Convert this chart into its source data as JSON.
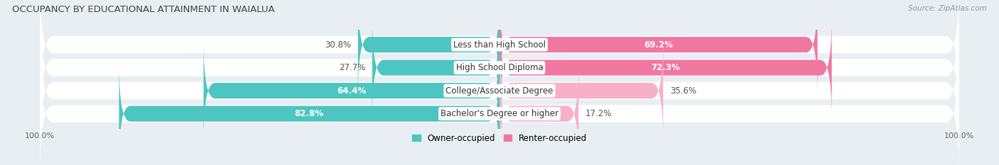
{
  "title": "OCCUPANCY BY EDUCATIONAL ATTAINMENT IN WAIALUA",
  "source": "Source: ZipAtlas.com",
  "categories": [
    "Less than High School",
    "High School Diploma",
    "College/Associate Degree",
    "Bachelor's Degree or higher"
  ],
  "owner_values": [
    30.8,
    27.7,
    64.4,
    82.8
  ],
  "renter_values": [
    69.2,
    72.3,
    35.6,
    17.2
  ],
  "owner_color": "#4dc5c0",
  "renter_color": "#f077a0",
  "renter_color_light": "#f8afc8",
  "background_color": "#e8eef2",
  "row_bg_color": "#f0f4f7",
  "bar_height": 0.68,
  "title_fontsize": 9.5,
  "label_fontsize": 8.5,
  "legend_fontsize": 8.5,
  "axis_label_fontsize": 8,
  "category_fontsize": 8.5
}
